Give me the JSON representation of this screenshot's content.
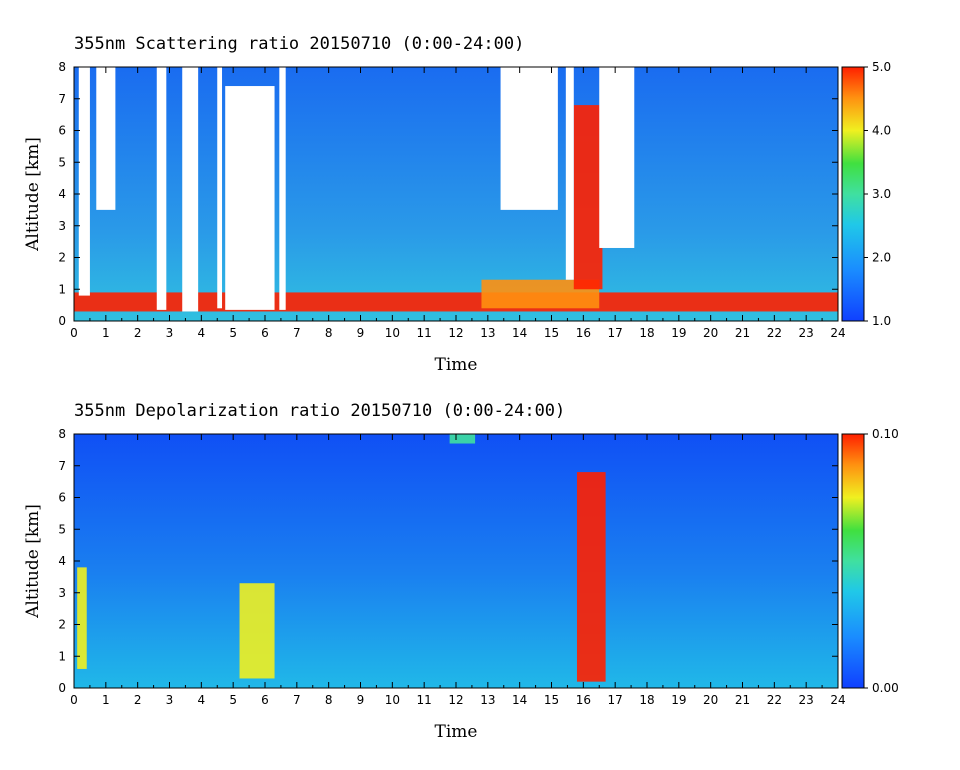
{
  "chart_data": [
    {
      "type": "heatmap",
      "title": "355nm Scattering ratio  20150710 (0:00-24:00)",
      "xlabel": "Time",
      "ylabel": "Altitude [km]",
      "xlim": [
        0,
        24
      ],
      "ylim": [
        0,
        8
      ],
      "x_ticks": [
        "0",
        "1",
        "2",
        "3",
        "4",
        "5",
        "6",
        "7",
        "8",
        "9",
        "10",
        "11",
        "12",
        "13",
        "14",
        "15",
        "16",
        "17",
        "18",
        "19",
        "20",
        "21",
        "22",
        "23",
        "24"
      ],
      "y_ticks": [
        "0",
        "1",
        "2",
        "3",
        "4",
        "5",
        "6",
        "7",
        "8"
      ],
      "colorbar": {
        "range": [
          1.0,
          5.0
        ],
        "tick_labels": [
          "1.0",
          "2.0",
          "3.0",
          "4.0",
          "5.0"
        ]
      },
      "no_data_regions": [
        {
          "t": [
            0.15,
            0.5
          ],
          "z": [
            0.8,
            8
          ]
        },
        {
          "t": [
            0.7,
            1.3
          ],
          "z": [
            3.5,
            8
          ]
        },
        {
          "t": [
            2.6,
            2.9
          ],
          "z": [
            0.35,
            8
          ]
        },
        {
          "t": [
            3.4,
            3.9
          ],
          "z": [
            0.3,
            8
          ]
        },
        {
          "t": [
            4.5,
            4.65
          ],
          "z": [
            0.4,
            8
          ]
        },
        {
          "t": [
            4.75,
            6.3
          ],
          "z": [
            0.35,
            7.4
          ]
        },
        {
          "t": [
            6.45,
            6.65
          ],
          "z": [
            0.35,
            8
          ]
        },
        {
          "t": [
            13.4,
            15.2
          ],
          "z": [
            3.5,
            8
          ]
        },
        {
          "t": [
            15.45,
            15.7
          ],
          "z": [
            1.3,
            8
          ]
        },
        {
          "t": [
            16.5,
            17.6
          ],
          "z": [
            2.3,
            8
          ]
        }
      ],
      "features": [
        {
          "kind": "boundary_layer",
          "t": [
            0,
            24
          ],
          "z": [
            0.3,
            0.9
          ],
          "value": 4.5
        },
        {
          "kind": "aerosol_layer",
          "t": [
            12.8,
            16.5
          ],
          "z": [
            0.4,
            1.3
          ],
          "value": 4.0
        },
        {
          "kind": "cloud_column",
          "t": [
            15.7,
            16.6
          ],
          "z": [
            1.0,
            6.8
          ],
          "value": 4.5
        }
      ]
    },
    {
      "type": "heatmap",
      "title": "355nm Depolarization ratio  20150710 (0:00-24:00)",
      "xlabel": "Time",
      "ylabel": "Altitude [km]",
      "xlim": [
        0,
        24
      ],
      "ylim": [
        0,
        8
      ],
      "x_ticks": [
        "0",
        "1",
        "2",
        "3",
        "4",
        "5",
        "6",
        "7",
        "8",
        "9",
        "10",
        "11",
        "12",
        "13",
        "14",
        "15",
        "16",
        "17",
        "18",
        "19",
        "20",
        "21",
        "22",
        "23",
        "24"
      ],
      "y_ticks": [
        "0",
        "1",
        "2",
        "3",
        "4",
        "5",
        "6",
        "7",
        "8"
      ],
      "colorbar": {
        "range": [
          0.0,
          0.1
        ],
        "tick_labels": [
          "0.00",
          "0.10"
        ]
      },
      "features": [
        {
          "kind": "dust_column",
          "t": [
            0.1,
            0.4
          ],
          "z": [
            0.6,
            3.8
          ],
          "value": 0.07
        },
        {
          "kind": "dust_column",
          "t": [
            5.2,
            6.3
          ],
          "z": [
            0.3,
            3.3
          ],
          "value": 0.07
        },
        {
          "kind": "cloud_column",
          "t": [
            15.8,
            16.7
          ],
          "z": [
            0.2,
            6.8
          ],
          "value": 0.09
        },
        {
          "kind": "noise_band",
          "t": [
            11.8,
            12.6
          ],
          "z": [
            7.7,
            8.0
          ],
          "value": 0.04
        }
      ]
    }
  ]
}
